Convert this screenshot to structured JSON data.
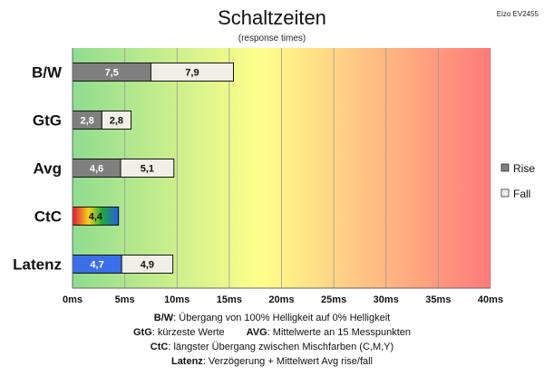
{
  "header": {
    "title": "Schaltzeiten",
    "subtitle": "(response times)",
    "model": "Eizo EV2455"
  },
  "chart_data": {
    "type": "bar",
    "orientation": "horizontal",
    "stacked": true,
    "categories": [
      "B/W",
      "GtG",
      "Avg",
      "CtC",
      "Latenz"
    ],
    "series": [
      {
        "name": "Rise",
        "values": [
          7.5,
          2.8,
          4.6,
          4.4,
          4.7
        ],
        "labels": [
          "7,5",
          "2,8",
          "4,6",
          "4,4",
          "4,7"
        ]
      },
      {
        "name": "Fall",
        "values": [
          7.9,
          2.8,
          5.1,
          null,
          4.9
        ],
        "labels": [
          "7,9",
          "2,8",
          "5,1",
          "",
          "4,9"
        ]
      }
    ],
    "xlim": [
      0,
      40
    ],
    "xticks": [
      0,
      5,
      10,
      15,
      20,
      25,
      30,
      35,
      40
    ],
    "xtick_labels": [
      "0ms",
      "5ms",
      "10ms",
      "15ms",
      "20ms",
      "25ms",
      "30ms",
      "35ms",
      "40ms"
    ],
    "grid": true,
    "legend": "right",
    "background_gradient": [
      "#8fdc8f",
      "#ffff8a",
      "#ff7a7a"
    ],
    "colors": {
      "rise": "#7f7f7f",
      "fall": "#f0eee6",
      "ctc_gradient": [
        "#e0143c",
        "#f7d21e",
        "#1ea83c",
        "#2a5ce8"
      ],
      "latenz_rise": "#3a6fe8"
    }
  },
  "notes": [
    {
      "label": "B/W",
      "text": ":  Übergang von 100% Helligkeit auf 0% Helligkeit"
    },
    {
      "label": "GtG",
      "text": ": kürzeste  Werte"
    },
    {
      "label": "AVG",
      "text": ": Mittelwerte  an 15 Messpunkten"
    },
    {
      "label": "CtC",
      "text": ": längster Übergang  zwischen Mischfarben  (C,M,Y)"
    },
    {
      "label": "Latenz",
      "text": ": Verzögerung  + Mittelwert Avg rise/fall"
    }
  ]
}
